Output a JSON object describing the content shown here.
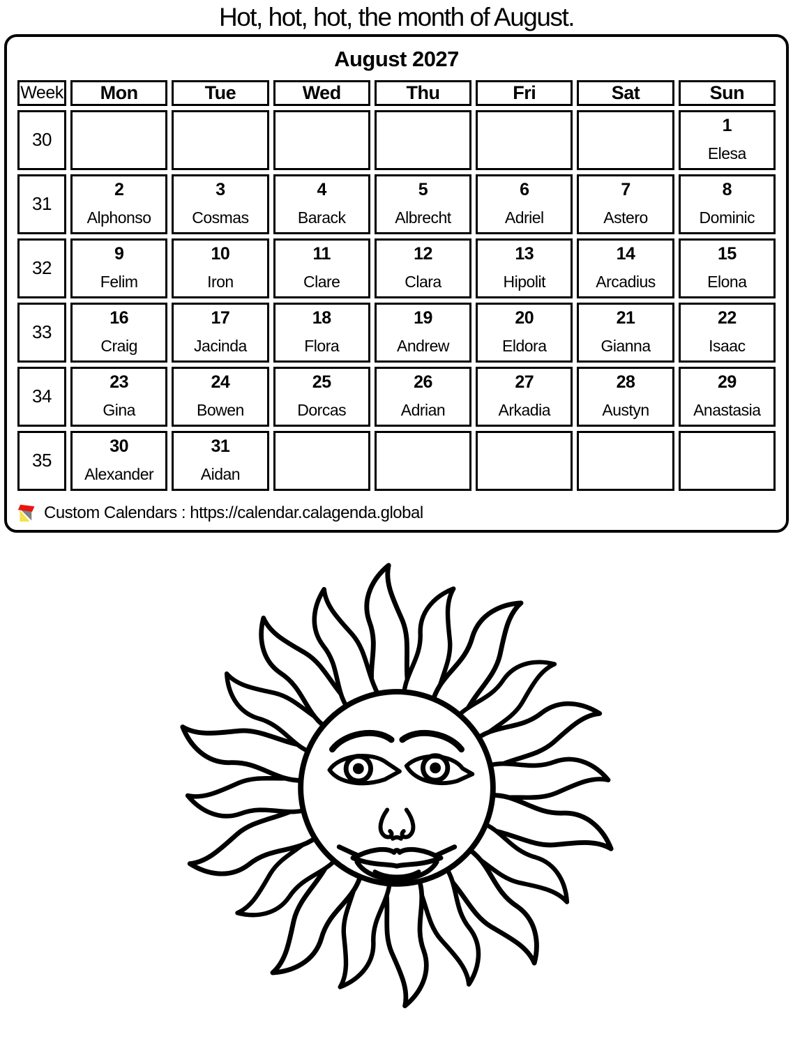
{
  "page": {
    "title": "Hot, hot, hot, the month of August."
  },
  "calendar": {
    "month_title": "August 2027",
    "week_column_header": "Week",
    "day_headers": [
      "Mon",
      "Tue",
      "Wed",
      "Thu",
      "Fri",
      "Sat",
      "Sun"
    ],
    "weeks": [
      {
        "week_number": "30",
        "days": [
          null,
          null,
          null,
          null,
          null,
          null,
          {
            "date": "1",
            "name": "Elesa"
          }
        ]
      },
      {
        "week_number": "31",
        "days": [
          {
            "date": "2",
            "name": "Alphonso"
          },
          {
            "date": "3",
            "name": "Cosmas"
          },
          {
            "date": "4",
            "name": "Barack"
          },
          {
            "date": "5",
            "name": "Albrecht"
          },
          {
            "date": "6",
            "name": "Adriel"
          },
          {
            "date": "7",
            "name": "Astero"
          },
          {
            "date": "8",
            "name": "Dominic"
          }
        ]
      },
      {
        "week_number": "32",
        "days": [
          {
            "date": "9",
            "name": "Felim"
          },
          {
            "date": "10",
            "name": "Iron"
          },
          {
            "date": "11",
            "name": "Clare"
          },
          {
            "date": "12",
            "name": "Clara"
          },
          {
            "date": "13",
            "name": "Hipolit"
          },
          {
            "date": "14",
            "name": "Arcadius"
          },
          {
            "date": "15",
            "name": "Elona"
          }
        ]
      },
      {
        "week_number": "33",
        "days": [
          {
            "date": "16",
            "name": "Craig"
          },
          {
            "date": "17",
            "name": "Jacinda"
          },
          {
            "date": "18",
            "name": "Flora"
          },
          {
            "date": "19",
            "name": "Andrew"
          },
          {
            "date": "20",
            "name": "Eldora"
          },
          {
            "date": "21",
            "name": "Gianna"
          },
          {
            "date": "22",
            "name": "Isaac"
          }
        ]
      },
      {
        "week_number": "34",
        "days": [
          {
            "date": "23",
            "name": "Gina"
          },
          {
            "date": "24",
            "name": "Bowen"
          },
          {
            "date": "25",
            "name": "Dorcas"
          },
          {
            "date": "26",
            "name": "Adrian"
          },
          {
            "date": "27",
            "name": "Arkadia"
          },
          {
            "date": "28",
            "name": "Austyn"
          },
          {
            "date": "29",
            "name": "Anastasia"
          }
        ]
      },
      {
        "week_number": "35",
        "days": [
          {
            "date": "30",
            "name": "Alexander"
          },
          {
            "date": "31",
            "name": "Aidan"
          },
          null,
          null,
          null,
          null,
          null
        ]
      }
    ],
    "footer": {
      "text": "Custom Calendars : https://calendar.calagenda.global"
    }
  },
  "illustration": {
    "description": "black and white line drawing of a sun with a smiling face and twenty wavy flame rays"
  },
  "colors": {
    "ink": "#000000",
    "paper": "#ffffff",
    "logo_red": "#e8150d",
    "logo_yellow": "#f5e14d",
    "logo_gray": "#7f7f7f"
  }
}
